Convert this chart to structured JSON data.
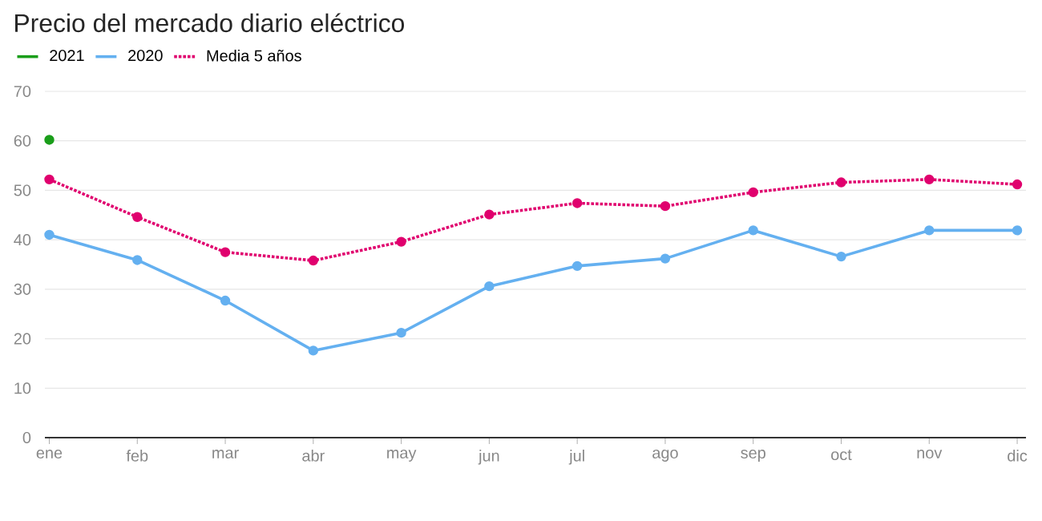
{
  "chart_data": {
    "type": "line",
    "title": "Precio del mercado diario eléctrico",
    "categories": [
      "ene",
      "feb",
      "mar",
      "abr",
      "may",
      "jun",
      "jul",
      "ago",
      "sep",
      "oct",
      "nov",
      "dic"
    ],
    "series": [
      {
        "name": "2021",
        "color": "#1a9e1a",
        "values": [
          60.2,
          null,
          null,
          null,
          null,
          null,
          null,
          null,
          null,
          null,
          null,
          null
        ]
      },
      {
        "name": "2020",
        "color": "#64b0f0",
        "values": [
          41.0,
          35.9,
          27.7,
          17.6,
          21.2,
          30.6,
          34.7,
          36.2,
          41.9,
          36.6,
          41.9,
          41.9
        ]
      },
      {
        "name": "Media 5 años",
        "color": "#e0006e",
        "line_style": "dotted",
        "values": [
          52.2,
          44.6,
          37.5,
          35.8,
          39.6,
          45.1,
          47.4,
          46.8,
          49.6,
          51.6,
          52.2,
          51.2
        ]
      }
    ],
    "ylim": [
      0,
      70
    ],
    "yticks": [
      0,
      10,
      20,
      30,
      40,
      50,
      60,
      70
    ],
    "grid": "y",
    "legend": "top left",
    "marker": "circle",
    "line_style": "solid"
  }
}
